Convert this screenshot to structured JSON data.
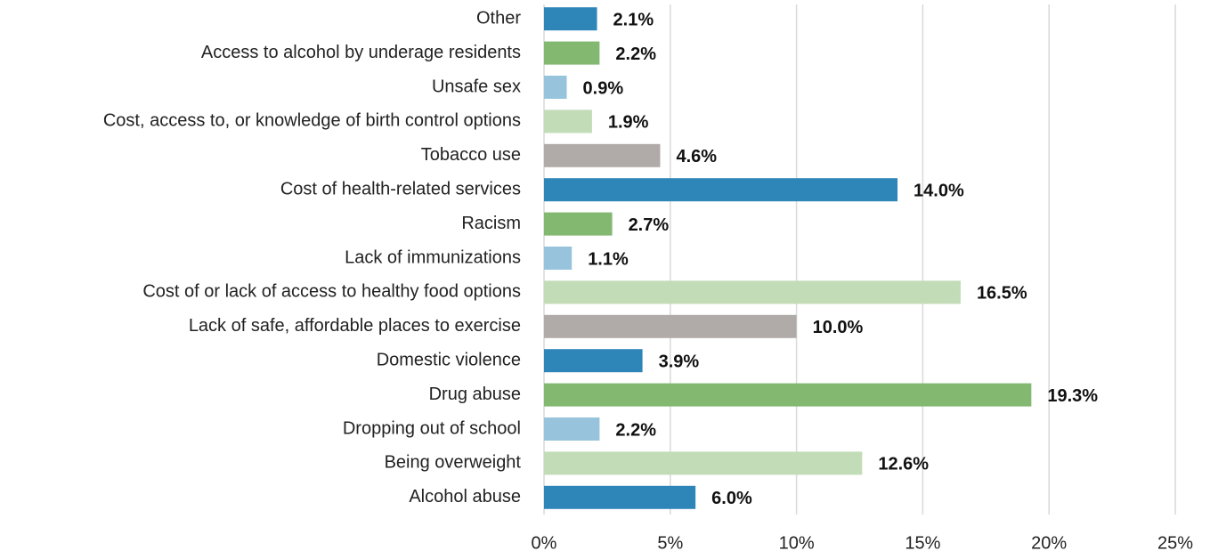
{
  "chart_data": {
    "type": "barh",
    "categories": [
      "Other",
      "Access to alcohol by underage residents",
      "Unsafe sex",
      "Cost, access to, or knowledge of birth control options",
      "Tobacco use",
      "Cost of health-related services",
      "Racism",
      "Lack of immunizations",
      "Cost of or lack of access to healthy food options",
      "Lack of safe, affordable places to exercise",
      "Domestic violence",
      "Drug abuse",
      "Dropping out of school",
      "Being overweight",
      "Alcohol abuse"
    ],
    "values": [
      2.1,
      2.2,
      0.9,
      1.9,
      4.6,
      14.0,
      2.7,
      1.1,
      16.5,
      10.0,
      3.9,
      19.3,
      2.2,
      12.6,
      6.0
    ],
    "value_labels": [
      "2.1%",
      "2.2%",
      "0.9%",
      "1.9%",
      "4.6%",
      "14.0%",
      "2.7%",
      "1.1%",
      "16.5%",
      "10.0%",
      "3.9%",
      "19.3%",
      "2.2%",
      "12.6%",
      "6.0%"
    ],
    "colors": [
      "#2e86b8",
      "#82b870",
      "#97c4dc",
      "#c2dcb8",
      "#b0aaa8",
      "#2e86b8",
      "#82b870",
      "#97c4dc",
      "#c2dcb8",
      "#b0aaa8",
      "#2e86b8",
      "#82b870",
      "#97c4dc",
      "#c2dcb8",
      "#2e86b8"
    ],
    "xlim": [
      0,
      25
    ],
    "xticks": [
      {
        "value": 0,
        "label": "0%"
      },
      {
        "value": 5,
        "label": "5%"
      },
      {
        "value": 10,
        "label": "10%"
      },
      {
        "value": 15,
        "label": "15%"
      },
      {
        "value": 20,
        "label": "20%"
      },
      {
        "value": 25,
        "label": "25%"
      }
    ],
    "grid": true
  }
}
